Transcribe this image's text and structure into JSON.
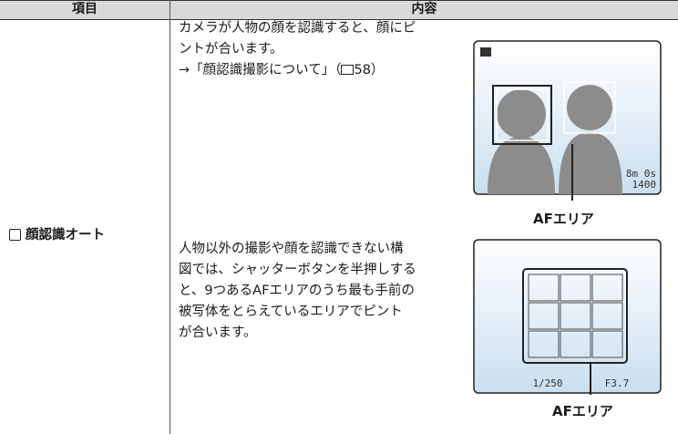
{
  "header": {
    "col1": "項目",
    "col2": "内容"
  },
  "row": {
    "item": "顔認識オート",
    "paragraph1": [
      "カメラが人物の顔を認識すると、顔にピ",
      "ントが合います。"
    ],
    "link": {
      "prefix": "→「顔認識撮影について」（",
      "page": "58",
      "suffix": "）"
    },
    "paragraph2": [
      "人物以外の撮影や顔を認識できない構",
      "図では、シャッターボタンを半押しする",
      "と、9つあるAFエリアのうち最も手前の",
      "被写体をとらえているエリアでピント",
      "が合います。"
    ],
    "screen1": {
      "time": "8m 0s",
      "count": "1400",
      "caption": "AFエリア"
    },
    "screen2": {
      "shutter": "1/250",
      "aperture": "F3.7",
      "caption": "AFエリア"
    }
  }
}
